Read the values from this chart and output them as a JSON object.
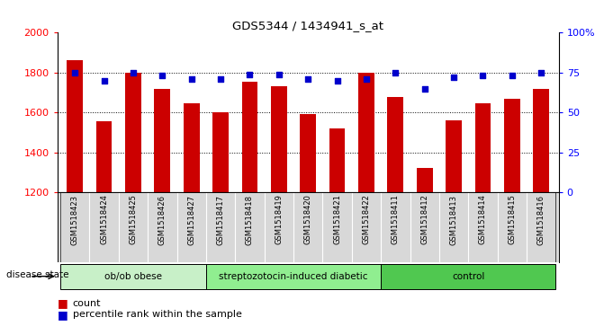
{
  "title": "GDS5344 / 1434941_s_at",
  "samples": [
    "GSM1518423",
    "GSM1518424",
    "GSM1518425",
    "GSM1518426",
    "GSM1518427",
    "GSM1518417",
    "GSM1518418",
    "GSM1518419",
    "GSM1518420",
    "GSM1518421",
    "GSM1518422",
    "GSM1518411",
    "GSM1518412",
    "GSM1518413",
    "GSM1518414",
    "GSM1518415",
    "GSM1518416"
  ],
  "counts": [
    1862,
    1558,
    1800,
    1720,
    1648,
    1600,
    1752,
    1730,
    1590,
    1522,
    1800,
    1678,
    1320,
    1562,
    1648,
    1668,
    1718
  ],
  "percentiles": [
    75,
    70,
    75,
    73,
    71,
    71,
    74,
    74,
    71,
    70,
    71,
    75,
    65,
    72,
    73,
    73,
    75
  ],
  "groups": [
    {
      "label": "ob/ob obese",
      "start": 0,
      "end": 5,
      "color": "#c8f0c8"
    },
    {
      "label": "streptozotocin-induced diabetic",
      "start": 5,
      "end": 11,
      "color": "#90ee90"
    },
    {
      "label": "control",
      "start": 11,
      "end": 17,
      "color": "#50c850"
    }
  ],
  "bar_color": "#cc0000",
  "dot_color": "#0000cc",
  "ylim_left": [
    1200,
    2000
  ],
  "ylim_right": [
    0,
    100
  ],
  "yticks_left": [
    1200,
    1400,
    1600,
    1800,
    2000
  ],
  "yticks_right": [
    0,
    25,
    50,
    75,
    100
  ],
  "ylabel_right_labels": [
    "0",
    "25",
    "50",
    "75",
    "100%"
  ],
  "label_bg_color": "#d8d8d8",
  "legend_count_label": "count",
  "legend_percentile_label": "percentile rank within the sample",
  "disease_state_label": "disease state"
}
